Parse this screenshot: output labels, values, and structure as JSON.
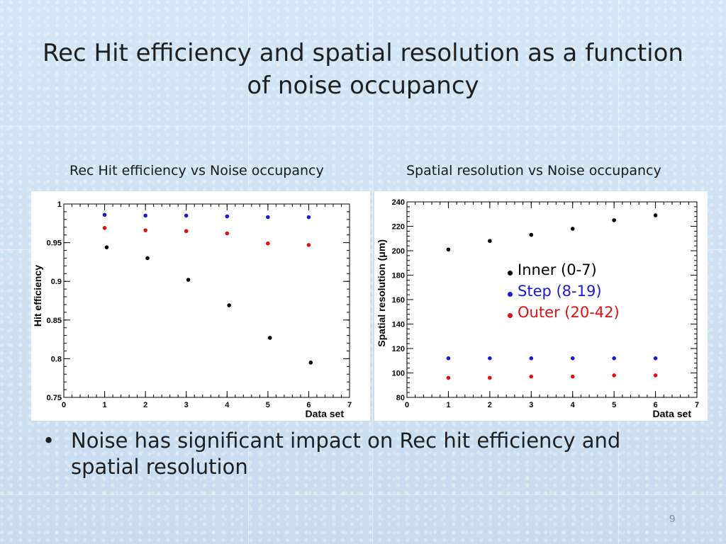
{
  "slide": {
    "title": "Rec Hit efficiency and spatial resolution as a function of noise occupancy",
    "bullet_marker": "•",
    "bullet": "Noise has significant impact on Rec hit efficiency and spatial resolution",
    "page_number": "9"
  },
  "chart_data": [
    {
      "type": "scatter",
      "title": "Rec Hit efficiency vs Noise occupancy",
      "xlabel": "Data set",
      "ylabel": "Hit efficiency",
      "xlim": [
        0,
        7
      ],
      "ylim": [
        0.75,
        1.0
      ],
      "xticks": [
        "0",
        "1",
        "2",
        "3",
        "4",
        "5",
        "6",
        "7"
      ],
      "yticks": [
        "0.75",
        "0.8",
        "0.85",
        "0.9",
        "0.95",
        "1"
      ],
      "grid": false,
      "series": [
        {
          "color": "#1a1ad6",
          "x": [
            1,
            2,
            3,
            4,
            5,
            6
          ],
          "y": [
            0.986,
            0.985,
            0.985,
            0.984,
            0.983,
            0.983
          ]
        },
        {
          "color": "#e01010",
          "x": [
            1,
            2,
            3,
            4,
            5,
            6
          ],
          "y": [
            0.969,
            0.966,
            0.965,
            0.962,
            0.949,
            0.947
          ]
        },
        {
          "color": "#000000",
          "x": [
            1.05,
            2.05,
            3.05,
            4.05,
            5.05,
            6.05
          ],
          "y": [
            0.944,
            0.93,
            0.902,
            0.869,
            0.827,
            0.795
          ]
        }
      ]
    },
    {
      "type": "scatter",
      "title": "Spatial resolution vs Noise occupancy",
      "xlabel": "Data set",
      "ylabel": "Spatial resolution (μm)",
      "xlim": [
        0,
        7
      ],
      "ylim": [
        80,
        240
      ],
      "xticks": [
        "0",
        "1",
        "2",
        "3",
        "4",
        "5",
        "6",
        "7"
      ],
      "yticks": [
        "80",
        "100",
        "120",
        "140",
        "160",
        "180",
        "200",
        "220",
        "240"
      ],
      "grid": false,
      "legend_position": "right",
      "series": [
        {
          "name": "Inner (0-7)",
          "color": "#000000",
          "x": [
            1,
            2,
            3,
            4,
            5,
            6
          ],
          "y": [
            201,
            208,
            213,
            218,
            225,
            229
          ]
        },
        {
          "name": "Step (8-19)",
          "color": "#1a1ad6",
          "x": [
            1,
            2,
            3,
            4,
            5,
            6
          ],
          "y": [
            112,
            112,
            112,
            112,
            112,
            112
          ]
        },
        {
          "name": "Outer (20-42)",
          "color": "#e01010",
          "x": [
            1,
            2,
            3,
            4,
            5,
            6
          ],
          "y": [
            96,
            96,
            97,
            97,
            98,
            98
          ]
        }
      ]
    }
  ]
}
